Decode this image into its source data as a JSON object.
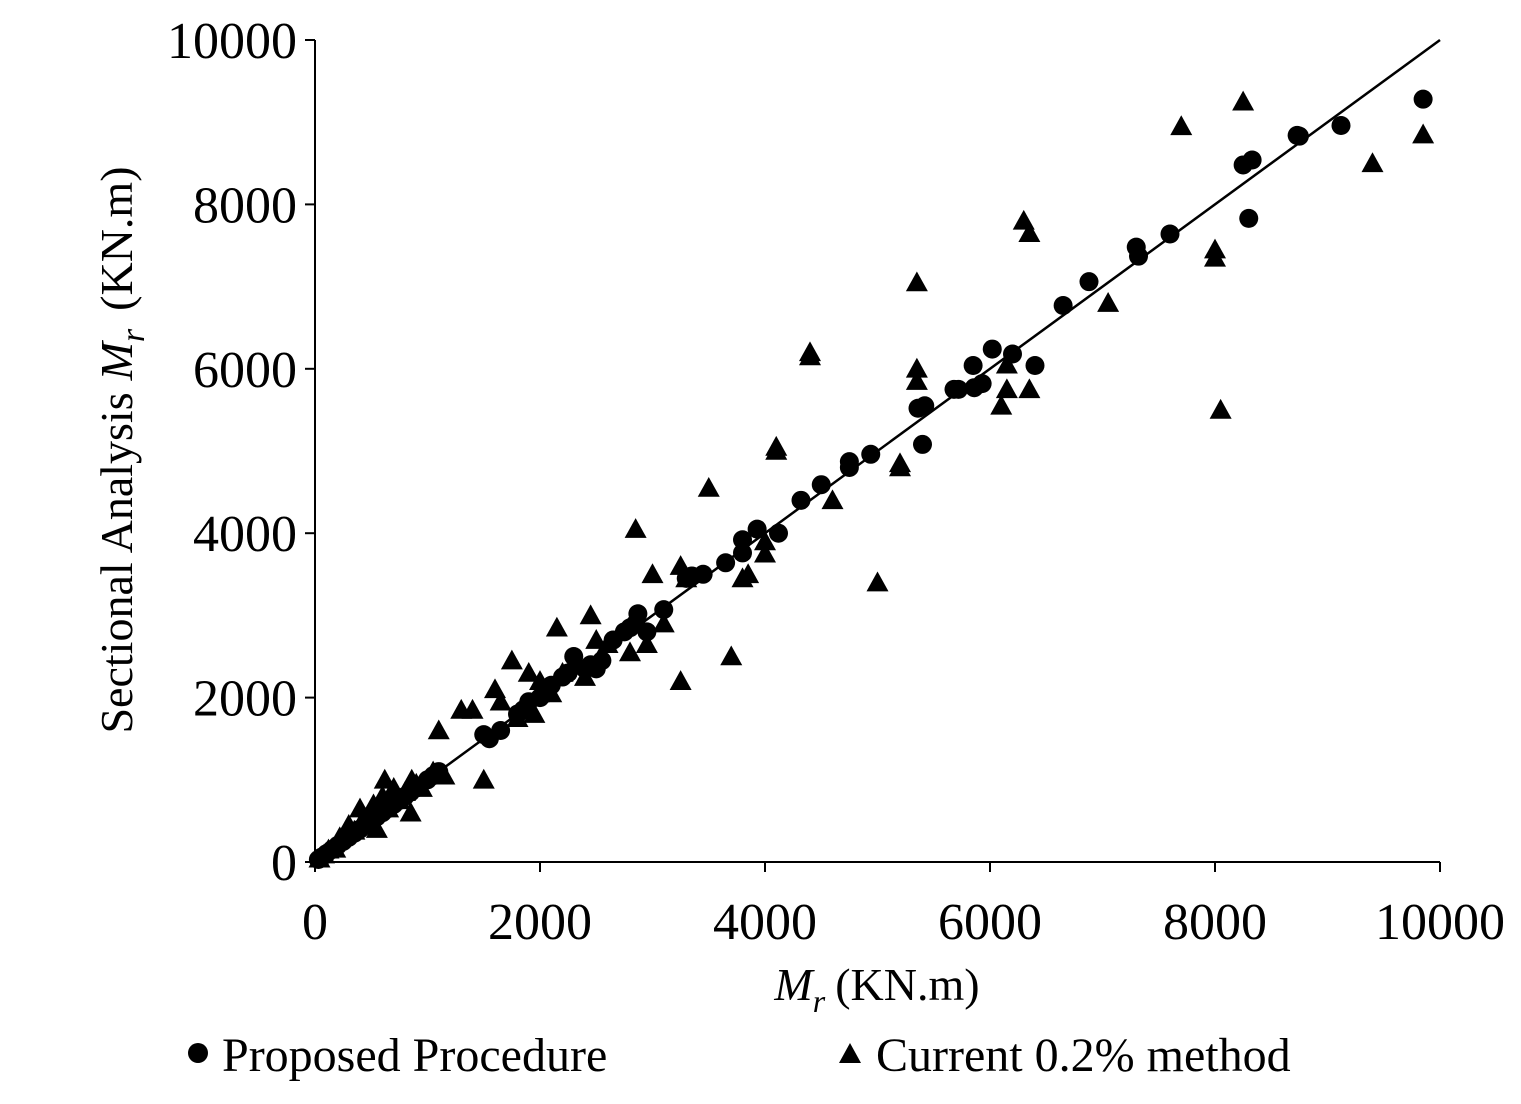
{
  "chart_data": {
    "type": "scatter",
    "title": "",
    "xlabel": {
      "symbol": "M",
      "subscript": "r",
      "unit": "(KN.m)"
    },
    "ylabel": {
      "prefix": "Sectional Analysis",
      "symbol": "M",
      "subscript": "r",
      "unit": "(KN.m)"
    },
    "xlim": [
      0,
      10000
    ],
    "ylim": [
      0,
      10000
    ],
    "xticks": [
      0,
      2000,
      4000,
      6000,
      8000,
      10000
    ],
    "yticks": [
      0,
      2000,
      4000,
      6000,
      8000,
      10000
    ],
    "xtick_labels": [
      "0",
      "2000",
      "4000",
      "6000",
      "8000",
      "10000"
    ],
    "ytick_labels": [
      "0",
      "2000",
      "4000",
      "6000",
      "8000",
      "10000"
    ],
    "grid": false,
    "legend_position": "bottom",
    "reference_line": {
      "x": [
        0,
        10000
      ],
      "y": [
        0,
        10000
      ]
    },
    "series": [
      {
        "name": "Proposed Procedure",
        "marker": "circle",
        "color": "#000000",
        "points": [
          [
            30,
            30
          ],
          [
            60,
            60
          ],
          [
            100,
            100
          ],
          [
            150,
            150
          ],
          [
            200,
            200
          ],
          [
            250,
            250
          ],
          [
            300,
            300
          ],
          [
            350,
            350
          ],
          [
            400,
            400
          ],
          [
            450,
            450
          ],
          [
            500,
            500
          ],
          [
            550,
            550
          ],
          [
            600,
            600
          ],
          [
            650,
            650
          ],
          [
            700,
            700
          ],
          [
            750,
            750
          ],
          [
            800,
            800
          ],
          [
            850,
            850
          ],
          [
            900,
            900
          ],
          [
            1000,
            1000
          ],
          [
            1050,
            1050
          ],
          [
            1100,
            1100
          ],
          [
            1500,
            1550
          ],
          [
            1550,
            1500
          ],
          [
            1650,
            1600
          ],
          [
            1800,
            1800
          ],
          [
            1850,
            1850
          ],
          [
            1900,
            1950
          ],
          [
            2000,
            2000
          ],
          [
            2050,
            2050
          ],
          [
            2100,
            2150
          ],
          [
            2200,
            2250
          ],
          [
            2250,
            2300
          ],
          [
            2300,
            2500
          ],
          [
            2400,
            2350
          ],
          [
            2450,
            2400
          ],
          [
            2500,
            2350
          ],
          [
            2550,
            2450
          ],
          [
            2650,
            2700
          ],
          [
            2750,
            2800
          ],
          [
            2800,
            2850
          ],
          [
            2850,
            2900
          ],
          [
            2870,
            3020
          ],
          [
            2950,
            2800
          ],
          [
            3100,
            3070
          ],
          [
            3300,
            3450
          ],
          [
            3350,
            3480
          ],
          [
            3450,
            3500
          ],
          [
            3650,
            3640
          ],
          [
            3800,
            3760
          ],
          [
            3800,
            3920
          ],
          [
            3930,
            4050
          ],
          [
            4120,
            4000
          ],
          [
            4320,
            4400
          ],
          [
            4500,
            4590
          ],
          [
            4750,
            4800
          ],
          [
            4750,
            4870
          ],
          [
            4940,
            4960
          ],
          [
            5360,
            5520
          ],
          [
            5400,
            5080
          ],
          [
            5420,
            5550
          ],
          [
            5680,
            5750
          ],
          [
            5720,
            5750
          ],
          [
            5850,
            6040
          ],
          [
            5860,
            5770
          ],
          [
            5930,
            5820
          ],
          [
            6020,
            6240
          ],
          [
            6200,
            6180
          ],
          [
            6400,
            6040
          ],
          [
            6650,
            6770
          ],
          [
            6880,
            7060
          ],
          [
            7300,
            7480
          ],
          [
            7320,
            7370
          ],
          [
            7600,
            7640
          ],
          [
            8250,
            8480
          ],
          [
            8300,
            7830
          ],
          [
            8330,
            8540
          ],
          [
            8730,
            8840
          ],
          [
            8750,
            8830
          ],
          [
            9120,
            8960
          ],
          [
            9850,
            9280
          ]
        ]
      },
      {
        "name": "Current 0.2% method",
        "marker": "triangle",
        "color": "#000000",
        "points": [
          [
            40,
            40
          ],
          [
            80,
            90
          ],
          [
            120,
            150
          ],
          [
            180,
            160
          ],
          [
            220,
            300
          ],
          [
            280,
            350
          ],
          [
            300,
            450
          ],
          [
            350,
            380
          ],
          [
            400,
            650
          ],
          [
            420,
            500
          ],
          [
            480,
            550
          ],
          [
            520,
            700
          ],
          [
            550,
            400
          ],
          [
            600,
            800
          ],
          [
            620,
            1000
          ],
          [
            650,
            650
          ],
          [
            700,
            900
          ],
          [
            750,
            750
          ],
          [
            800,
            850
          ],
          [
            850,
            600
          ],
          [
            860,
            1000
          ],
          [
            900,
            950
          ],
          [
            950,
            900
          ],
          [
            1050,
            1100
          ],
          [
            1100,
            1600
          ],
          [
            1150,
            1050
          ],
          [
            1300,
            1850
          ],
          [
            1400,
            1850
          ],
          [
            1500,
            1000
          ],
          [
            1600,
            2100
          ],
          [
            1650,
            1950
          ],
          [
            1750,
            2450
          ],
          [
            1800,
            1750
          ],
          [
            1900,
            2300
          ],
          [
            1950,
            1800
          ],
          [
            2000,
            2200
          ],
          [
            2100,
            2050
          ],
          [
            2150,
            2850
          ],
          [
            2200,
            2300
          ],
          [
            2300,
            2400
          ],
          [
            2400,
            2250
          ],
          [
            2450,
            3000
          ],
          [
            2500,
            2700
          ],
          [
            2600,
            2650
          ],
          [
            2800,
            2550
          ],
          [
            2850,
            4050
          ],
          [
            2950,
            2650
          ],
          [
            3000,
            3500
          ],
          [
            3100,
            2900
          ],
          [
            3250,
            3600
          ],
          [
            3250,
            2200
          ],
          [
            3300,
            3450
          ],
          [
            3500,
            4550
          ],
          [
            3700,
            2500
          ],
          [
            3800,
            3450
          ],
          [
            3850,
            3500
          ],
          [
            4000,
            3900
          ],
          [
            4000,
            3750
          ],
          [
            4100,
            5000
          ],
          [
            4100,
            5050
          ],
          [
            4400,
            6200
          ],
          [
            4400,
            6150
          ],
          [
            4600,
            4400
          ],
          [
            5000,
            3400
          ],
          [
            5200,
            4850
          ],
          [
            5200,
            4800
          ],
          [
            5350,
            7050
          ],
          [
            5350,
            6000
          ],
          [
            5350,
            5850
          ],
          [
            6100,
            5550
          ],
          [
            6150,
            5750
          ],
          [
            6150,
            6050
          ],
          [
            6350,
            5750
          ],
          [
            6300,
            7800
          ],
          [
            6350,
            7650
          ],
          [
            7050,
            6800
          ],
          [
            7700,
            8950
          ],
          [
            8000,
            7350
          ],
          [
            8000,
            7450
          ],
          [
            8050,
            5500
          ],
          [
            8250,
            9250
          ],
          [
            9400,
            8500
          ],
          [
            9850,
            8850
          ]
        ]
      }
    ]
  }
}
